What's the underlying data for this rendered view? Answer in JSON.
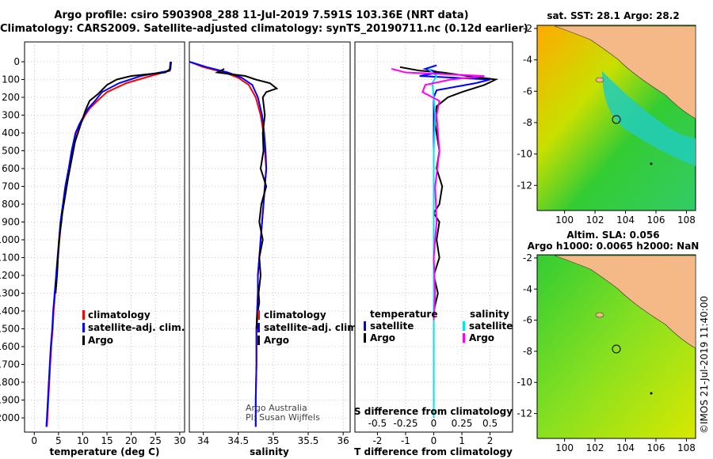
{
  "header": {
    "line1": "Argo profile: csiro 5903908_288 11-Jul-2019 7.591S 103.36E (NRT data)",
    "line2": "Climatology: CARS2009. Satellite-adjusted climatology: synTS_20190711.nc (0.12d earlier)"
  },
  "map1": {
    "title": "sat. SST: 28.1 Argo: 28.2"
  },
  "map2": {
    "title1": "Altim. SLA: 0.056",
    "title2": "Argo h1000: 0.0065 h2000: NaN"
  },
  "side_label": "©IMOS 21-Jul-2019 11:40:00",
  "colors": {
    "climatology": "#ff0000",
    "satellite": "#0000ff",
    "argo": "#000000",
    "sat_salinity": "#00e5e5",
    "argo_salinity": "#ff00ff",
    "land": "#f5b987"
  },
  "legend_temp": [
    "climatology",
    "satellite-adj. clim.",
    "Argo"
  ],
  "legend_sal": [
    "climatology",
    "satellite-adj. clim.",
    "Argo"
  ],
  "legend_diff": {
    "temp_head": "temperature",
    "sal_head": "salinity",
    "satellite": "satellite",
    "argo": "Argo"
  },
  "credits": [
    "Argo Australia",
    "PI: Susan Wijffels"
  ],
  "chart_data": [
    {
      "type": "line",
      "xlabel": "temperature (deg C)",
      "ylabel": "",
      "xlim": [
        -2,
        31
      ],
      "ylim": [
        2080,
        0
      ],
      "xticks": [
        "0",
        "5",
        "10",
        "15",
        "20",
        "25",
        "30"
      ],
      "yticks": [
        "0",
        "100",
        "200",
        "300",
        "400",
        "500",
        "600",
        "700",
        "800",
        "900",
        "1000",
        "1100",
        "1200",
        "1300",
        "1400",
        "1500",
        "1600",
        "1700",
        "1800",
        "1900",
        "2000"
      ],
      "series": [
        {
          "name": "climatology",
          "x": [
            28.2,
            28.0,
            24.0,
            19.0,
            15.0,
            13.0,
            11.5,
            10.5,
            9.5,
            8.6,
            7.8,
            7.2,
            6.5,
            6.0,
            5.5,
            5.2,
            4.9,
            4.6,
            4.3,
            4.0,
            3.8,
            3.5,
            3.3,
            3.1,
            2.9,
            2.7,
            2.6
          ],
          "y": [
            0,
            50,
            80,
            120,
            170,
            220,
            260,
            300,
            350,
            400,
            500,
            600,
            700,
            800,
            900,
            1000,
            1100,
            1200,
            1300,
            1400,
            1500,
            1600,
            1700,
            1800,
            1900,
            2000,
            2050
          ]
        },
        {
          "name": "satellite-adj. clim.",
          "x": [
            28.1,
            27.9,
            22.0,
            17.5,
            14.0,
            12.5,
            11.2,
            10.3,
            9.3,
            8.5,
            7.7,
            7.1,
            6.4,
            5.9,
            5.4,
            5.1,
            4.8,
            4.5,
            4.2,
            3.9,
            3.7,
            3.4,
            3.2,
            3.0,
            2.8,
            2.6,
            2.5
          ],
          "y": [
            0,
            50,
            80,
            120,
            170,
            220,
            260,
            300,
            350,
            400,
            500,
            600,
            700,
            800,
            900,
            1000,
            1100,
            1200,
            1300,
            1400,
            1500,
            1600,
            1700,
            1800,
            1900,
            2000,
            2050
          ]
        },
        {
          "name": "Argo",
          "x": [
            28.2,
            28.1,
            27.0,
            20.0,
            17.0,
            15.0,
            13.2,
            11.4,
            10.6,
            9.6,
            8.4,
            7.7,
            7.0,
            6.4,
            5.8,
            5.6,
            5.1,
            4.9,
            4.7,
            4.4
          ],
          "y": [
            0,
            40,
            60,
            80,
            100,
            130,
            180,
            220,
            270,
            350,
            450,
            550,
            650,
            750,
            850,
            900,
            1000,
            1100,
            1200,
            1300
          ]
        }
      ]
    },
    {
      "type": "line",
      "xlabel": "salinity",
      "xlim": [
        33.8,
        36.1
      ],
      "ylim": [
        2080,
        0
      ],
      "xticks": [
        "34",
        "34.5",
        "35",
        "35.5",
        "36"
      ],
      "series": [
        {
          "name": "climatology",
          "x": [
            33.8,
            34.0,
            34.3,
            34.5,
            34.65,
            34.75,
            34.82,
            34.86,
            34.88,
            34.9,
            34.88,
            34.86,
            34.84,
            34.82,
            34.8,
            34.78,
            34.78,
            34.77,
            34.76,
            34.76,
            34.75,
            34.75
          ],
          "y": [
            0,
            30,
            60,
            90,
            130,
            200,
            300,
            400,
            500,
            600,
            700,
            800,
            900,
            1000,
            1100,
            1200,
            1300,
            1400,
            1500,
            1700,
            1900,
            2050
          ]
        },
        {
          "name": "satellite-adj. clim.",
          "x": [
            33.8,
            34.05,
            34.35,
            34.55,
            34.7,
            34.78,
            34.84,
            34.87,
            34.89,
            34.9,
            34.88,
            34.86,
            34.84,
            34.82,
            34.8,
            34.78,
            34.78,
            34.77,
            34.76,
            34.76,
            34.75,
            34.75
          ],
          "y": [
            0,
            30,
            60,
            90,
            130,
            200,
            300,
            400,
            500,
            600,
            700,
            800,
            900,
            1000,
            1100,
            1200,
            1300,
            1400,
            1500,
            1700,
            1900,
            2050
          ]
        },
        {
          "name": "Argo",
          "x": [
            34.3,
            34.2,
            34.6,
            34.75,
            34.95,
            35.05,
            34.9,
            34.85,
            34.88,
            34.85,
            34.86,
            34.82,
            34.9,
            34.83,
            34.8,
            34.85,
            34.8,
            34.82,
            34.79,
            34.8,
            34.78,
            34.77,
            34.76
          ],
          "y": [
            40,
            60,
            80,
            100,
            120,
            150,
            170,
            200,
            300,
            400,
            500,
            600,
            700,
            800,
            900,
            1000,
            1100,
            1200,
            1300,
            1350,
            1400,
            1450,
            1500
          ]
        }
      ]
    },
    {
      "type": "line",
      "xlabel": "T difference from climatology",
      "xlim": [
        -2.8,
        2.8
      ],
      "ylim": [
        2080,
        0
      ],
      "xticks": [
        "-2",
        "-1",
        "0",
        "1",
        "2"
      ],
      "title": "S difference from climatology",
      "x2ticks": [
        "-0.5",
        "-0.25",
        "0",
        "0.25",
        "0.5"
      ],
      "series": [
        {
          "name": "temperature satellite",
          "x": [
            0.1,
            -0.3,
            0.2,
            -0.5,
            2.0,
            1.5,
            0.8,
            0.1,
            0.0,
            0.0,
            0.0,
            0.0,
            0.0,
            0.0,
            0.0,
            0.0,
            0.0,
            0.0
          ],
          "y": [
            20,
            40,
            60,
            80,
            100,
            120,
            140,
            160,
            200,
            300,
            500,
            800,
            1000,
            1200,
            1400,
            1600,
            1800,
            2000
          ]
        },
        {
          "name": "temperature Argo",
          "x": [
            -1.2,
            -0.5,
            0.3,
            1.2,
            2.2,
            1.8,
            1.0,
            0.5,
            0.1,
            0.05,
            0.2,
            0.1,
            0.3,
            0.2,
            0.0,
            0.2,
            0.1,
            0.2,
            0.0,
            0.15,
            0.0
          ],
          "y": [
            30,
            50,
            60,
            80,
            100,
            130,
            170,
            200,
            250,
            350,
            500,
            600,
            700,
            800,
            850,
            900,
            1000,
            1100,
            1200,
            1300,
            1400
          ]
        },
        {
          "name": "salinity satellite",
          "x": [
            -0.2,
            0.1,
            -0.05,
            0.0,
            0.05,
            0.0,
            0.0,
            0.0,
            0.0,
            0.0,
            0.0
          ],
          "y": [
            40,
            80,
            120,
            200,
            300,
            500,
            800,
            1000,
            1200,
            1500,
            2000
          ]
        },
        {
          "name": "salinity Argo",
          "x": [
            -1.5,
            -1.0,
            1.8,
            0.6,
            -0.3,
            -0.4,
            0.2,
            0.1,
            0.2,
            0.05,
            0.1,
            0.0,
            0.05,
            0.0
          ],
          "y": [
            40,
            60,
            80,
            100,
            130,
            170,
            220,
            300,
            500,
            700,
            900,
            1100,
            1300,
            1450
          ]
        }
      ]
    },
    {
      "type": "heatmap",
      "title": "sat. SST: 28.1 Argo: 28.2",
      "xticks": [
        "100",
        "102",
        "104",
        "106",
        "108"
      ],
      "yticks": [
        "-2",
        "-4",
        "-6",
        "-8",
        "-10",
        "-12"
      ],
      "xlim": [
        98.2,
        108.6
      ],
      "ylim": [
        -13.6,
        -1.8
      ]
    },
    {
      "type": "heatmap",
      "title": "Altim. SLA: 0.056",
      "xticks": [
        "100",
        "102",
        "104",
        "106",
        "108"
      ],
      "yticks": [
        "-2",
        "-4",
        "-6",
        "-8",
        "-10",
        "-12"
      ],
      "xlim": [
        98.2,
        108.6
      ],
      "ylim": [
        -13.6,
        -1.8
      ]
    }
  ]
}
